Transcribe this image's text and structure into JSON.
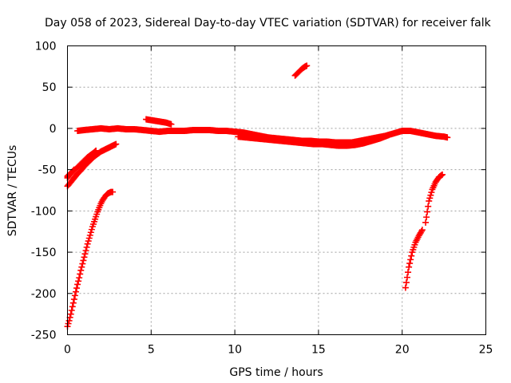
{
  "chart_data": {
    "type": "scatter",
    "title": "Day 058 of 2023, Sidereal Day-to-day VTEC variation (SDTVAR) for receiver falk",
    "xlabel": "GPS time / hours",
    "ylabel": "SDTVAR / TECUs",
    "xlim": [
      0,
      25
    ],
    "ylim": [
      -250,
      100
    ],
    "x_ticks": [
      0,
      5,
      10,
      15,
      20,
      25
    ],
    "y_ticks": [
      100,
      50,
      0,
      -50,
      -100,
      -150,
      -200,
      -250
    ],
    "grid": true,
    "marker": "plus",
    "color": "#ff0000",
    "series": [
      {
        "x": [
          0.0,
          0.1,
          0.2,
          0.3,
          0.4,
          0.5,
          0.6,
          0.7,
          0.8,
          0.9,
          1.0,
          1.1,
          1.2,
          1.3,
          1.4,
          1.5,
          1.6,
          1.7,
          1.8,
          1.9,
          2.0,
          2.1,
          2.2,
          2.3,
          2.4,
          2.5,
          2.6,
          2.7
        ],
        "y": [
          -240,
          -233,
          -225,
          -216,
          -207,
          -198,
          -189,
          -181,
          -172,
          -164,
          -156,
          -148,
          -140,
          -133,
          -126,
          -119,
          -113,
          -107,
          -101,
          -96,
          -91,
          -87,
          -84,
          -81,
          -79,
          -78,
          -77,
          -77
        ]
      },
      {
        "x": [
          0.0,
          0.2,
          0.4,
          0.6,
          0.8,
          1.0,
          1.2,
          1.4,
          1.6,
          1.8,
          2.0,
          2.2,
          2.4,
          2.6,
          2.8,
          2.9
        ],
        "y": [
          -70,
          -65,
          -60,
          -55,
          -51,
          -46,
          -42,
          -38,
          -34,
          -31,
          -28,
          -26,
          -24,
          -22,
          -20,
          -19
        ]
      },
      {
        "x": [
          0.0,
          0.2,
          0.4,
          0.6,
          0.8,
          1.0,
          1.2,
          1.4,
          1.6,
          1.7
        ],
        "y": [
          -60,
          -55,
          -51,
          -47,
          -43,
          -39,
          -35,
          -32,
          -29,
          -27
        ]
      },
      {
        "x": [
          0.0,
          0.1,
          0.2,
          0.3,
          0.4
        ],
        "y": [
          -58,
          -56,
          -54,
          -52,
          -50
        ]
      },
      {
        "x": [
          0.6,
          1.0,
          1.5,
          2.0,
          2.5,
          3.0,
          3.5,
          4.0,
          4.5,
          5.0,
          5.5,
          6.0,
          6.5,
          7.0,
          7.5,
          8.0,
          8.5,
          9.0,
          9.5,
          10.0,
          10.5,
          11.0,
          11.5,
          12.0,
          12.5,
          13.0,
          13.5,
          14.0,
          14.5,
          15.0,
          15.5,
          16.0,
          16.5,
          17.0,
          17.5,
          18.0,
          18.5,
          19.0,
          19.5,
          20.0
        ],
        "y": [
          -3,
          -2,
          -1,
          0,
          -1,
          0,
          -1,
          -1,
          -2,
          -3,
          -4,
          -3,
          -3,
          -3,
          -2,
          -2,
          -2,
          -3,
          -3,
          -4,
          -5,
          -7,
          -9,
          -11,
          -12,
          -13,
          -14,
          -15,
          -15,
          -16,
          -16,
          -17,
          -17,
          -17,
          -15,
          -13,
          -11,
          -9,
          -6,
          -3
        ]
      },
      {
        "x": [
          10.2,
          10.7,
          11.2,
          11.7,
          12.2,
          12.7,
          13.2,
          13.7,
          14.2,
          14.7,
          15.2,
          15.7,
          16.2,
          16.7,
          17.2,
          17.7,
          18.2,
          18.7,
          19.2
        ],
        "y": [
          -10,
          -11,
          -12,
          -13,
          -14,
          -15,
          -16,
          -17,
          -18,
          -19,
          -19,
          -20,
          -21,
          -21,
          -20,
          -18,
          -15,
          -12,
          -8
        ]
      },
      {
        "x": [
          4.7,
          5.0,
          5.3,
          5.6,
          5.9,
          6.2
        ],
        "y": [
          11,
          10,
          9,
          8,
          7,
          5
        ]
      },
      {
        "x": [
          13.6,
          13.8,
          14.0,
          14.2,
          14.3
        ],
        "y": [
          64,
          68,
          72,
          75,
          76
        ]
      },
      {
        "x": [
          20.2,
          20.4,
          20.6,
          20.8,
          21.0,
          21.2
        ],
        "y": [
          -193,
          -168,
          -150,
          -138,
          -130,
          -123
        ]
      },
      {
        "x": [
          21.4,
          21.6,
          21.8,
          22.0,
          22.2,
          22.4
        ],
        "y": [
          -114,
          -88,
          -74,
          -65,
          -59,
          -56
        ]
      },
      {
        "x": [
          20.0,
          20.5,
          21.0,
          21.5,
          22.0,
          22.5,
          22.7
        ],
        "y": [
          -3,
          -3,
          -5,
          -7,
          -9,
          -10,
          -11
        ]
      }
    ]
  }
}
